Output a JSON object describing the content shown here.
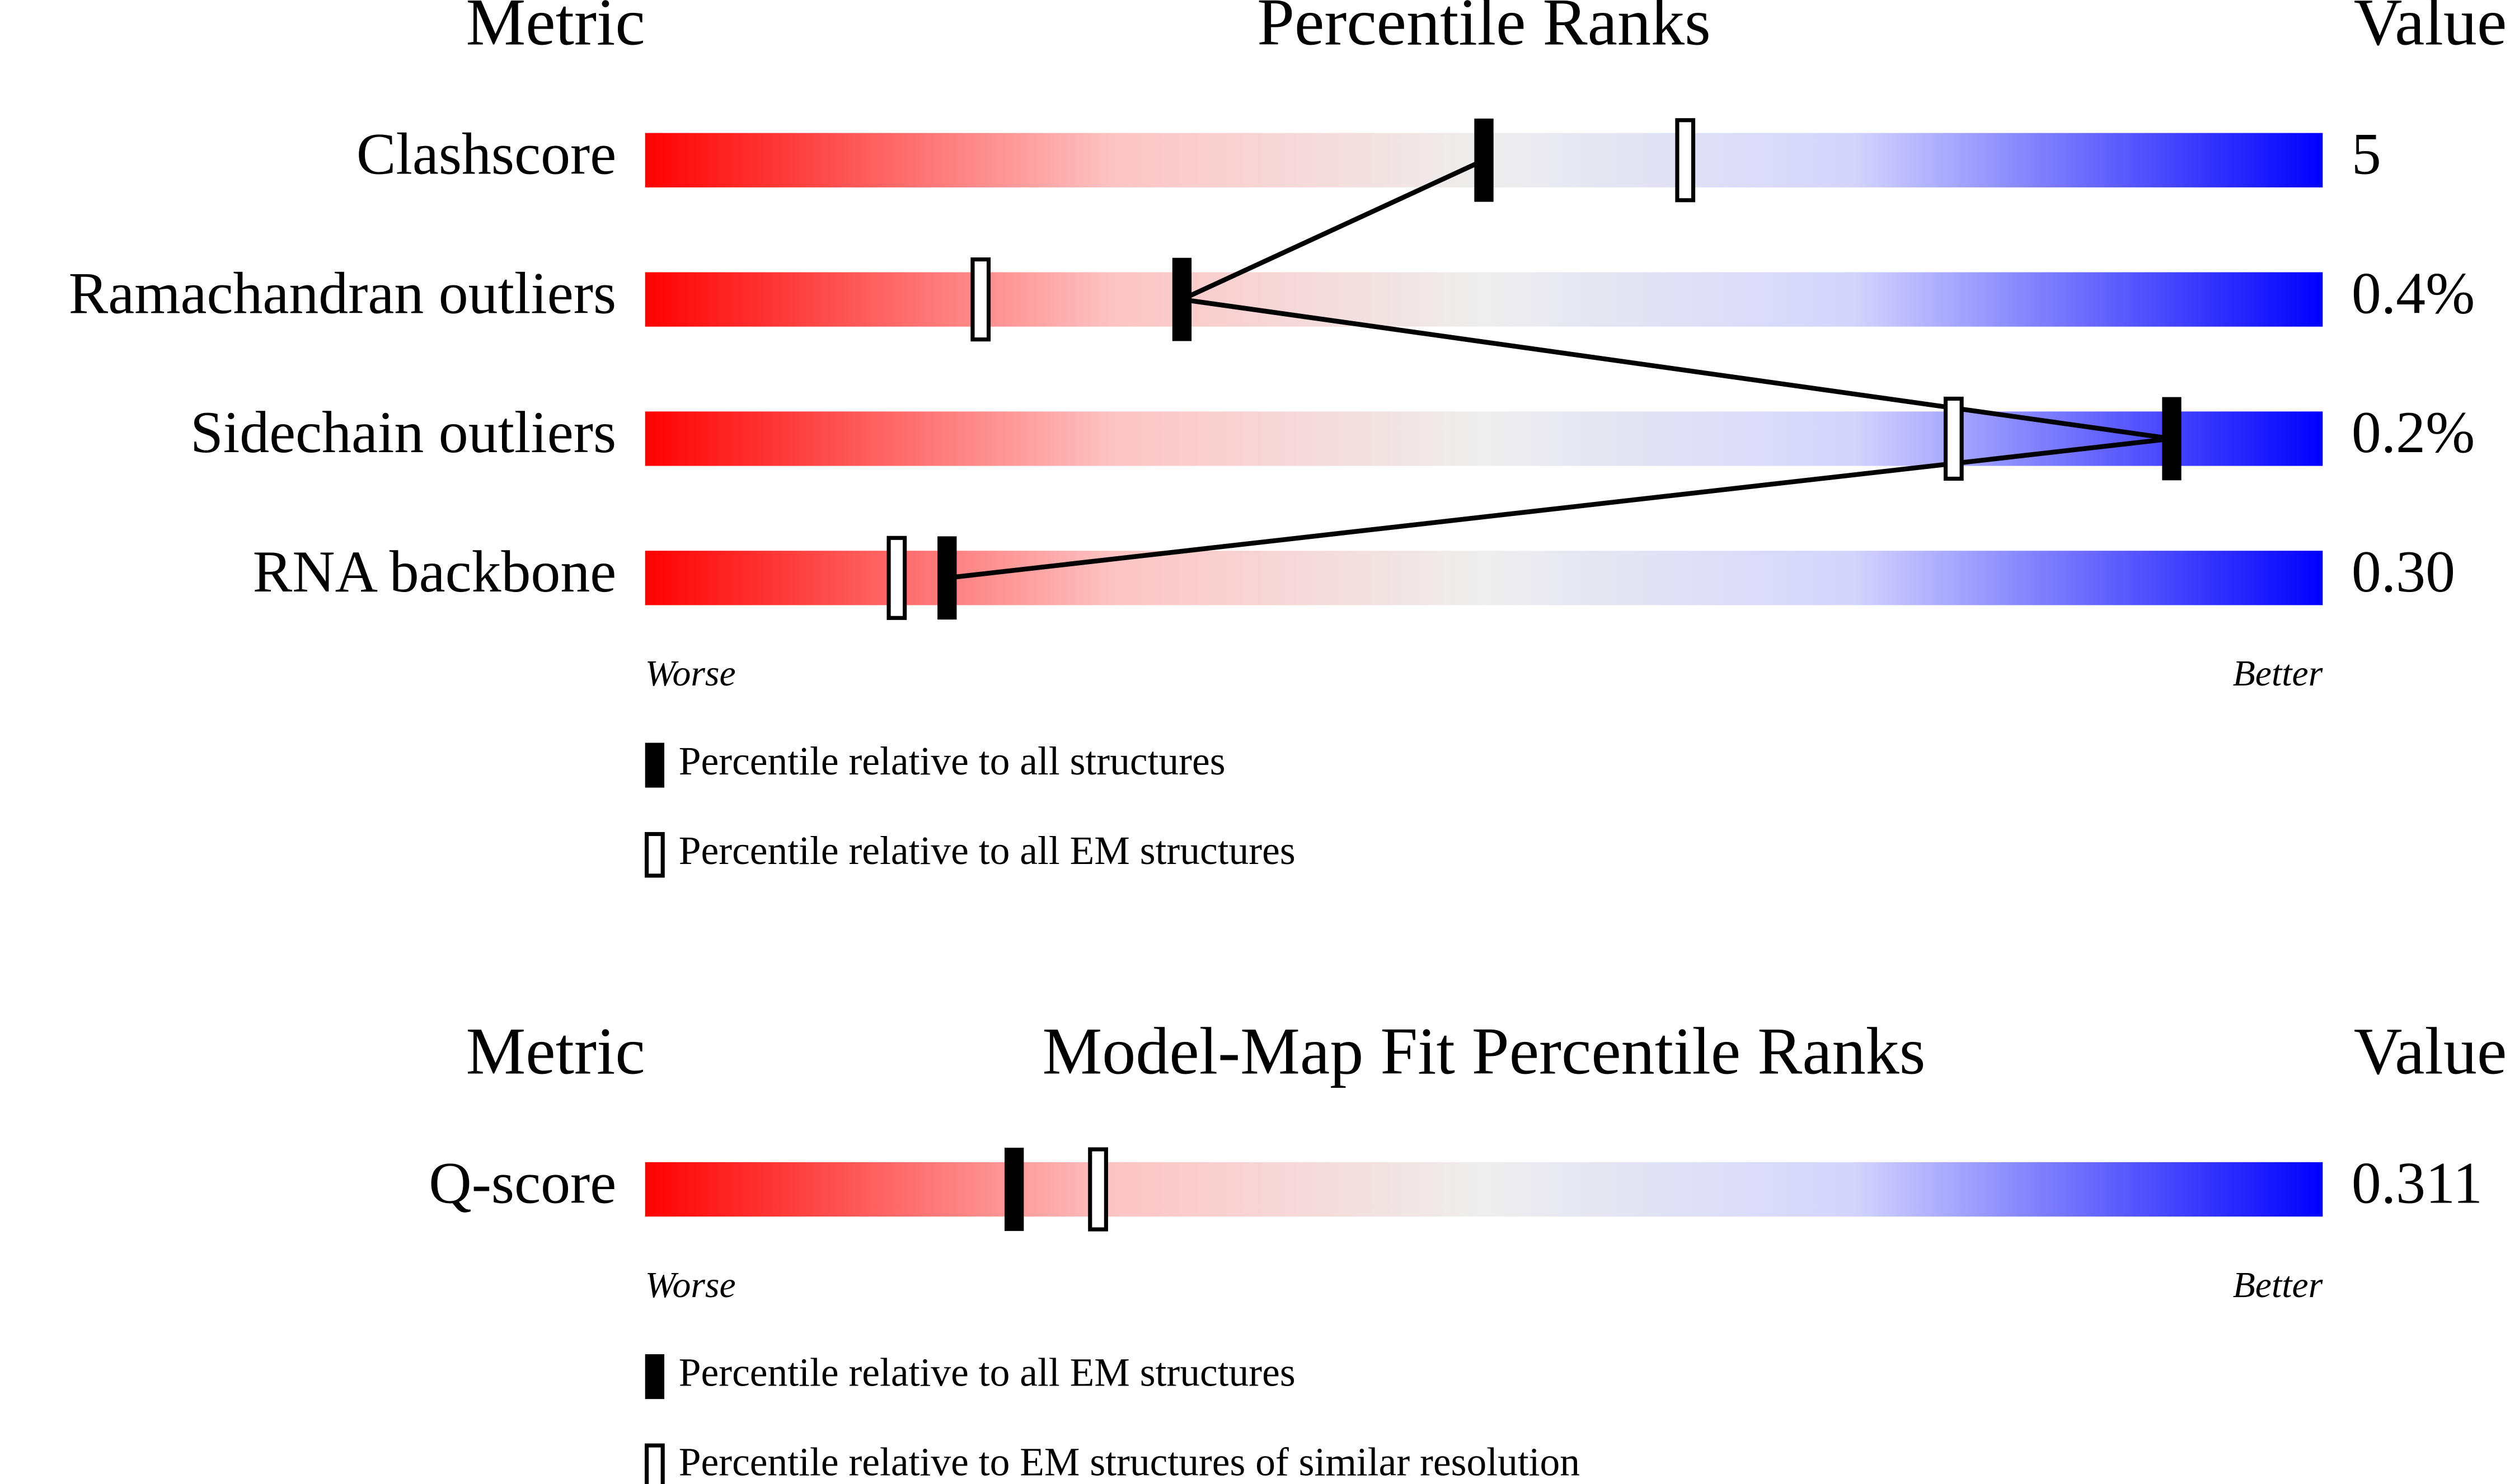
{
  "chart_data": [
    {
      "type": "percentile-slider",
      "metric_header": "Metric",
      "title": "Percentile Ranks",
      "value_header": "Value",
      "categories": [
        "Clashscore",
        "Ramachandran outliers",
        "Sidechain outliers",
        "RNA backbone"
      ],
      "metric_values": [
        "5",
        "0.4%",
        "0.2%",
        "0.30"
      ],
      "series": [
        {
          "name": "Percentile relative to all structures",
          "marker": "filled",
          "connect": true,
          "values": [
            50,
            32,
            91,
            18
          ]
        },
        {
          "name": "Percentile relative to all EM structures",
          "marker": "open",
          "connect": false,
          "values": [
            62,
            20,
            78,
            15
          ]
        }
      ],
      "xlim": [
        0,
        100
      ],
      "x_low_label": "Worse",
      "x_high_label": "Better"
    },
    {
      "type": "percentile-slider",
      "metric_header": "Metric",
      "title": "Model-Map Fit Percentile Ranks",
      "value_header": "Value",
      "categories": [
        "Q-score"
      ],
      "metric_values": [
        "0.311"
      ],
      "series": [
        {
          "name": "Percentile relative to all EM structures",
          "marker": "filled",
          "connect": true,
          "values": [
            22
          ]
        },
        {
          "name": "Percentile relative to EM structures of similar resolution",
          "marker": "open",
          "connect": false,
          "values": [
            27
          ]
        }
      ],
      "xlim": [
        0,
        100
      ],
      "x_low_label": "Worse",
      "x_high_label": "Better"
    }
  ]
}
